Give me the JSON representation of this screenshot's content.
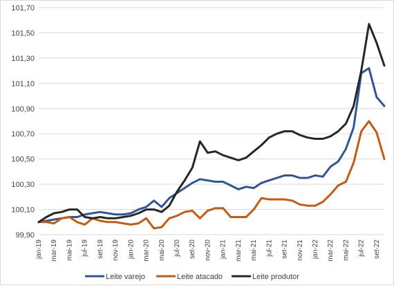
{
  "chart_data": {
    "type": "line",
    "title": "",
    "xlabel": "",
    "ylabel": "",
    "ylim": [
      99.9,
      101.7
    ],
    "yticks": [
      99.9,
      100.1,
      100.3,
      100.5,
      100.7,
      100.9,
      101.1,
      101.3,
      101.5,
      101.7
    ],
    "ytick_labels": [
      "99,90",
      "100,10",
      "100,30",
      "100,50",
      "100,70",
      "100,90",
      "101,10",
      "101,30",
      "101,50",
      "101,70"
    ],
    "grid": "horizontal",
    "legend_position": "bottom",
    "x": [
      "jan-19",
      "fev-19",
      "mar-19",
      "abr-19",
      "mai-19",
      "jun-19",
      "jul-19",
      "ago-19",
      "set-19",
      "out-19",
      "nov-19",
      "dez-19",
      "jan-20",
      "fev-20",
      "mar-20",
      "abr-20",
      "mai-20",
      "jun-20",
      "jul-20",
      "ago-20",
      "set-20",
      "out-20",
      "nov-20",
      "dez-20",
      "jan-21",
      "fev-21",
      "mar-21",
      "abr-21",
      "mai-21",
      "jun-21",
      "jul-21",
      "ago-21",
      "set-21",
      "out-21",
      "nov-21",
      "dez-21",
      "jan-22",
      "fev-22",
      "mar-22",
      "abr-22",
      "mai-22",
      "jun-22",
      "jul-22",
      "ago-22",
      "set-22",
      "out-22"
    ],
    "x_tick_labels": [
      "jan-19",
      "mar-19",
      "mai-19",
      "jul-19",
      "set-19",
      "nov-19",
      "jan-20",
      "mar-20",
      "mai-20",
      "jul-20",
      "set-20",
      "nov-20",
      "jan-21",
      "mar-21",
      "mai-21",
      "jul-21",
      "set-21",
      "nov-21",
      "jan-22",
      "mar-22",
      "mai-22",
      "jul-22",
      "set-22"
    ],
    "series": [
      {
        "name": "Leite varejo",
        "color": "#2f5597",
        "values": [
          100.0,
          100.01,
          100.02,
          100.03,
          100.04,
          100.04,
          100.06,
          100.07,
          100.08,
          100.07,
          100.06,
          100.06,
          100.07,
          100.1,
          100.12,
          100.17,
          100.12,
          100.19,
          100.23,
          100.27,
          100.31,
          100.34,
          100.33,
          100.32,
          100.32,
          100.29,
          100.26,
          100.28,
          100.27,
          100.31,
          100.33,
          100.35,
          100.37,
          100.37,
          100.35,
          100.35,
          100.37,
          100.36,
          100.44,
          100.48,
          100.58,
          100.75,
          101.18,
          101.22,
          100.99,
          100.92
        ]
      },
      {
        "name": "Leite atacado",
        "color": "#c55a11",
        "values": [
          100.0,
          100.0,
          99.99,
          100.03,
          100.04,
          100.0,
          99.98,
          100.03,
          100.01,
          100.0,
          100.0,
          99.99,
          99.98,
          99.99,
          100.03,
          99.95,
          99.96,
          100.03,
          100.05,
          100.08,
          100.09,
          100.03,
          100.09,
          100.11,
          100.11,
          100.04,
          100.04,
          100.04,
          100.1,
          100.19,
          100.18,
          100.18,
          100.18,
          100.17,
          100.14,
          100.13,
          100.13,
          100.16,
          100.22,
          100.29,
          100.32,
          100.47,
          100.72,
          100.8,
          100.71,
          100.5
        ]
      },
      {
        "name": "Leite produtor",
        "color": "#262626",
        "values": [
          100.0,
          100.04,
          100.07,
          100.08,
          100.1,
          100.1,
          100.04,
          100.03,
          100.04,
          100.03,
          100.03,
          100.04,
          100.05,
          100.07,
          100.1,
          100.1,
          100.08,
          100.13,
          100.24,
          100.33,
          100.43,
          100.64,
          100.55,
          100.56,
          100.53,
          100.51,
          100.49,
          100.51,
          100.56,
          100.61,
          100.67,
          100.7,
          100.72,
          100.72,
          100.69,
          100.67,
          100.66,
          100.66,
          100.68,
          100.72,
          100.78,
          100.92,
          101.2,
          101.57,
          101.42,
          101.24
        ]
      }
    ]
  }
}
